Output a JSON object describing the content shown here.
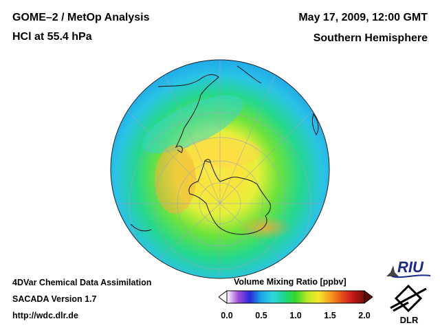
{
  "header": {
    "title": "GOME–2 / MetOp Analysis",
    "subtitle": "HCl at 55.4 hPa",
    "date": "May 17, 2009, 12:00 GMT",
    "region": "Southern Hemisphere"
  },
  "footer": {
    "line1": "4DVar Chemical Data Assimilation",
    "line2": "SACADA Version 1.7",
    "line3": "http://wdc.dlr.de"
  },
  "colorbar": {
    "label": "Volume Mixing Ratio [ppbv]",
    "min": 0.0,
    "max": 2.0,
    "ticks": [
      "0.0",
      "0.5",
      "1.0",
      "1.5",
      "2.0"
    ],
    "colors": [
      "#ffffff",
      "#a04bd8",
      "#2b2bd8",
      "#1aa7e8",
      "#2fd6e0",
      "#1dd68a",
      "#34d62a",
      "#b9e825",
      "#f5e62a",
      "#f5a020",
      "#e8501e",
      "#c41818",
      "#7a0d0d"
    ]
  },
  "logos": {
    "riu": "RIU",
    "dlr": "DLR"
  },
  "map": {
    "projection": "orthographic south polar",
    "ocean_color": "#1fd0a8"
  }
}
